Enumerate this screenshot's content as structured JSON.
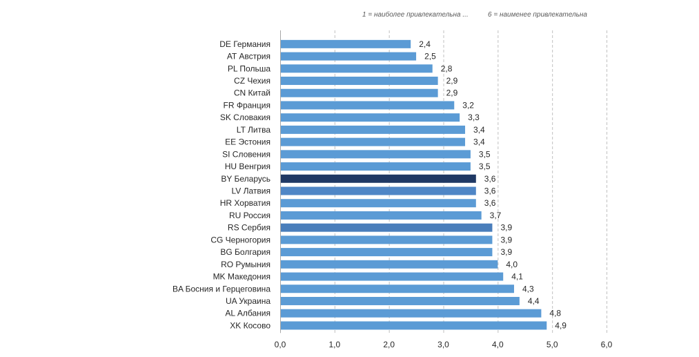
{
  "note": {
    "left": "1 = наиболее привлекательна ...",
    "right": "6 = наименее привлекательна"
  },
  "chart_data": {
    "type": "bar",
    "orientation": "horizontal",
    "categories": [
      "DE Германия",
      "AT Австрия",
      "PL Польша",
      "CZ Чехия",
      "CN Китай",
      "FR Франция",
      "SK Словакия",
      "LT Литва",
      "EE Эстония",
      "SI Словения",
      "HU Венгрия",
      "BY Беларусь",
      "LV Латвия",
      "HR Хорватия",
      "RU Россия",
      "RS Сербия",
      "CG Черногория",
      "BG Болгария",
      "RO Румыния",
      "MK Македония",
      "BA Босния и Герцеговина",
      "UA Украина",
      "AL Албания",
      "XK Косово"
    ],
    "values": [
      2.4,
      2.5,
      2.8,
      2.9,
      2.9,
      3.2,
      3.3,
      3.4,
      3.4,
      3.5,
      3.5,
      3.6,
      3.6,
      3.6,
      3.7,
      3.9,
      3.9,
      3.9,
      4.0,
      4.1,
      4.3,
      4.4,
      4.8,
      4.9
    ],
    "value_labels": [
      "2,4",
      "2,5",
      "2,8",
      "2,9",
      "2,9",
      "3,2",
      "3,3",
      "3,4",
      "3,4",
      "3,5",
      "3,5",
      "3,6",
      "3,6",
      "3,6",
      "3,7",
      "3,9",
      "3,9",
      "3,9",
      "4,0",
      "4,1",
      "4,3",
      "4,4",
      "4,8",
      "4,9"
    ],
    "xlim": [
      0,
      6
    ],
    "x_ticks": [
      "0,0",
      "1,0",
      "2,0",
      "3,0",
      "4,0",
      "5,0",
      "6,0"
    ],
    "grid": "vertical-dashed",
    "colors": {
      "default": "#5b9bd5",
      "highlight_by": "#1f3864",
      "highlight_lv": "#4f86c6",
      "highlight_rs": "#4a7ebb",
      "grid": "#bfbfbf",
      "text": "#262626"
    },
    "bar_colors": [
      "default",
      "default",
      "default",
      "default",
      "default",
      "default",
      "default",
      "default",
      "default",
      "default",
      "default",
      "highlight_by",
      "highlight_lv",
      "default",
      "default",
      "highlight_rs",
      "default",
      "default",
      "default",
      "default",
      "default",
      "default",
      "default",
      "default"
    ]
  }
}
